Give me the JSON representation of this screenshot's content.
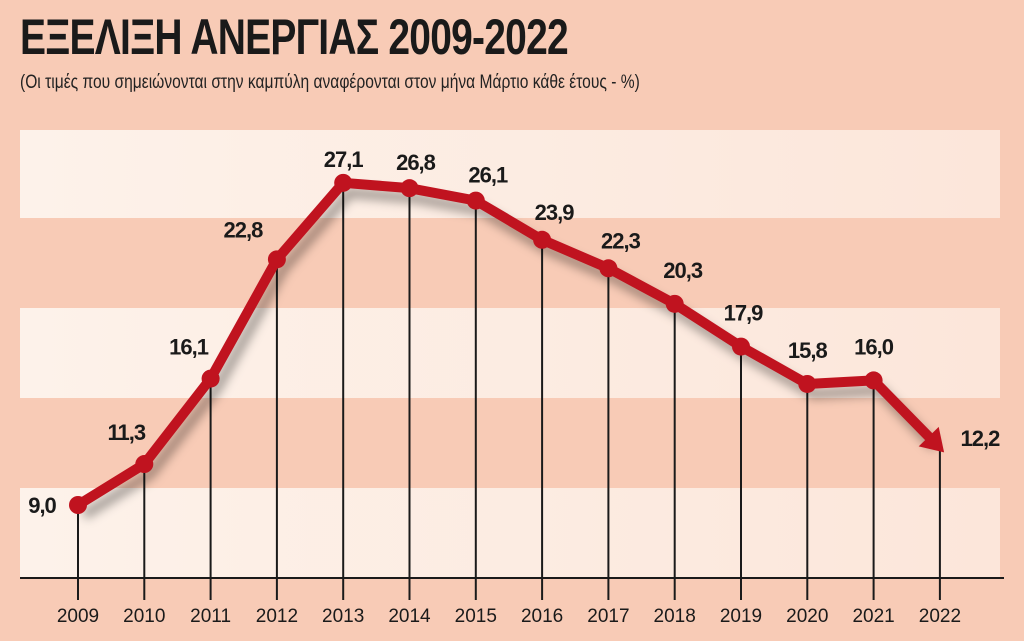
{
  "chart_data": {
    "type": "line",
    "title": "ΕΞΕΛΙΞΗ ΑΝΕΡΓΙΑΣ 2009-2022",
    "subtitle": "(Οι τιμές που σημειώνονται στην καμπύλη αναφέρονται στον μήνα Μάρτιο κάθε έτους - %)",
    "categories": [
      "2009",
      "2010",
      "2011",
      "2012",
      "2013",
      "2014",
      "2015",
      "2016",
      "2017",
      "2018",
      "2019",
      "2020",
      "2021",
      "2022"
    ],
    "values": [
      9.0,
      11.3,
      16.1,
      22.8,
      27.1,
      26.8,
      26.1,
      23.9,
      22.3,
      20.3,
      17.9,
      15.8,
      16.0,
      12.2
    ],
    "data_labels": [
      "9,0",
      "11,3",
      "16,1",
      "22,8",
      "27,1",
      "26,8",
      "26,1",
      "23,9",
      "22,3",
      "20,3",
      "17,9",
      "15,8",
      "16,0",
      "12,2"
    ],
    "xlabel": "",
    "ylabel": "",
    "grid": false,
    "colors": {
      "line": "#c0131f",
      "background": "#f8cbb6",
      "band": "#fdf0e8"
    }
  }
}
